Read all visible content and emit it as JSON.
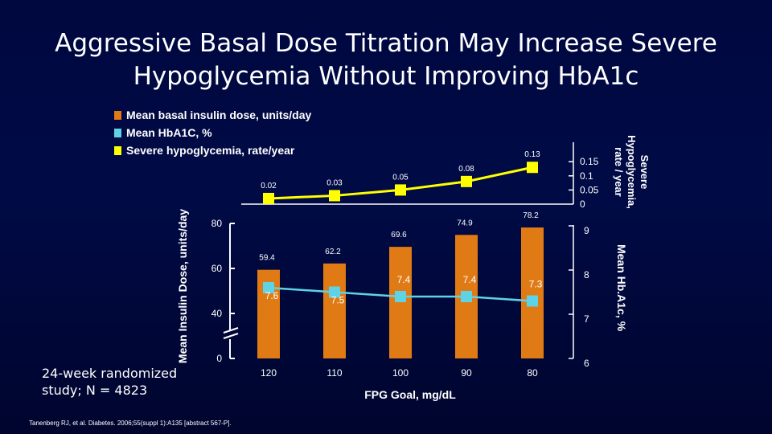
{
  "title_line1": "Aggressive Basal Dose Titration May Increase Severe",
  "title_line2": "Hypoglycemia Without Improving HbA1c",
  "legend": [
    {
      "label": "Mean basal insulin dose, units/day",
      "color": "#e07a14"
    },
    {
      "label": "Mean HbA1C, %",
      "color": "#5fd3e6"
    },
    {
      "label": "Severe hypoglycemia, rate/year",
      "color": "#ffff00"
    }
  ],
  "study_note_line1": "24-week randomized",
  "study_note_line2": "study; N = 4823",
  "citation": "Tanenberg RJ, et al. Diabetes. 2006;55(suppl 1):A135 [abstract 567-P].",
  "chart_data": {
    "type": "bar",
    "xlabel": "FPG Goal, mg/dL",
    "categories": [
      "120",
      "110",
      "100",
      "90",
      "80"
    ],
    "series": [
      {
        "name": "Mean basal insulin dose, units/day",
        "type": "bar",
        "axis": "left",
        "color": "#e07a14",
        "values": [
          59.4,
          62.2,
          69.6,
          74.9,
          78.2
        ]
      },
      {
        "name": "Mean HbA1C, %",
        "type": "line",
        "axis": "right-lower",
        "color": "#5fd3e6",
        "values": [
          7.6,
          7.5,
          7.4,
          7.4,
          7.3
        ]
      },
      {
        "name": "Severe hypoglycemia, rate/year",
        "type": "line",
        "axis": "right-upper",
        "color": "#ffff00",
        "values": [
          0.02,
          0.03,
          0.05,
          0.08,
          0.13
        ]
      }
    ],
    "left_axis": {
      "title": "Mean Insulin Dose, units/day",
      "ticks": [
        "80",
        "60",
        "40",
        "0"
      ],
      "broken": true
    },
    "right_lower_axis": {
      "title": "Mean Hb.A1c, %",
      "ticks": [
        "9",
        "8",
        "7",
        "6"
      ],
      "ylim": [
        6,
        9
      ]
    },
    "right_upper_axis": {
      "title_line1": "Severe",
      "title_line2": "Hypoglycemia,",
      "title_line3": "rate / year",
      "ticks": [
        "0.15",
        "0.1",
        "0.05",
        "0"
      ],
      "ylim": [
        0,
        0.15
      ]
    }
  }
}
